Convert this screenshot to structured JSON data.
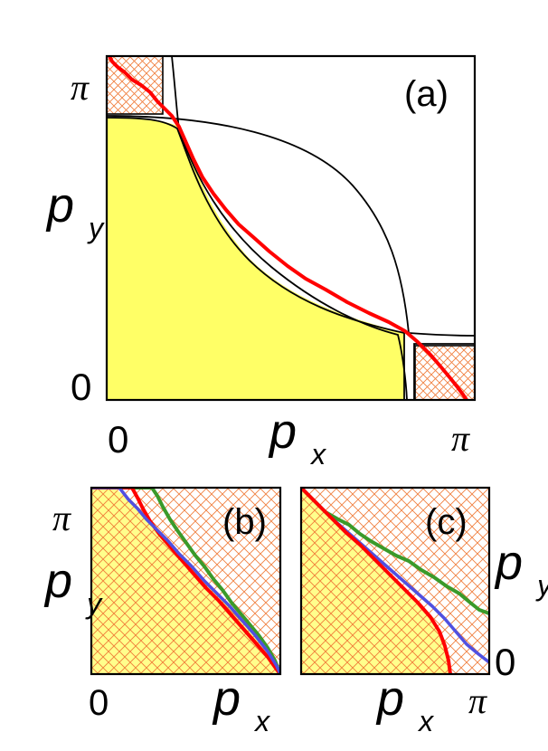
{
  "panels": {
    "a": {
      "label": "(a)",
      "x_axis": {
        "label": "p",
        "subscript": "x",
        "tick_min": "0",
        "tick_max": "π"
      },
      "y_axis": {
        "label": "p",
        "subscript": "y",
        "tick_min": "0",
        "tick_max": "π"
      }
    },
    "b": {
      "label": "(b)",
      "x_axis": {
        "label": "p",
        "subscript": "x",
        "tick_min": "0"
      },
      "y_axis": {
        "label": "p",
        "subscript": "y",
        "tick_max": "π"
      }
    },
    "c": {
      "label": "(c)",
      "x_axis": {
        "label": "p",
        "subscript": "x",
        "tick_max": "π"
      },
      "y_axis": {
        "label": "p",
        "subscript": "y",
        "tick_min": "0"
      }
    }
  },
  "colors": {
    "filled_region": "#ffff66",
    "hatch": "#f08040",
    "red_curve": "#ff0000",
    "green_curve": "#3a9a2a",
    "blue_curve": "#5050e0",
    "frame": "#000000"
  }
}
